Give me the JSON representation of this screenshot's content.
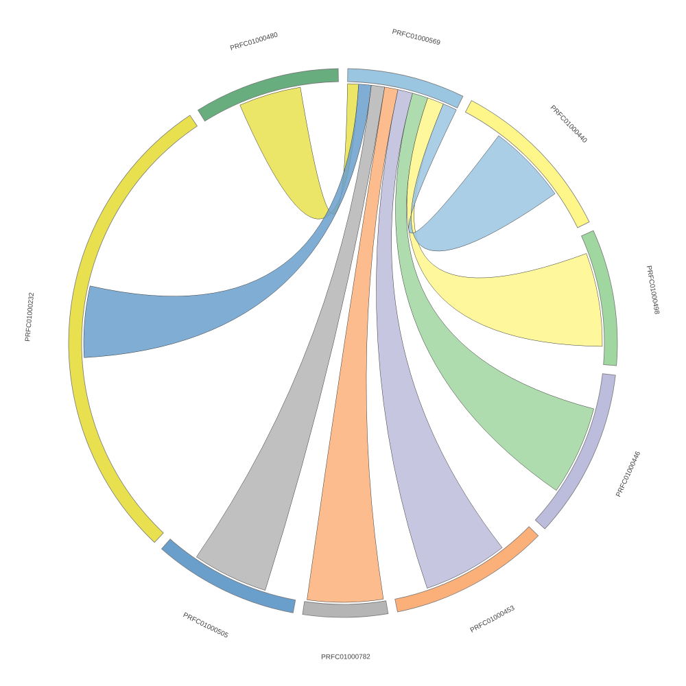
{
  "chart_data": {
    "type": "chord",
    "nodes": [
      {
        "name": "PRFC01000569",
        "value": 25,
        "color": "#9ac6e2"
      },
      {
        "name": "PRFC01000440",
        "value": 36,
        "color": "#fff68a"
      },
      {
        "name": "PRFC01000498",
        "value": 29,
        "color": "#a0d6a0"
      },
      {
        "name": "PRFC01000446",
        "value": 36,
        "color": "#bcbcdc"
      },
      {
        "name": "PRFC01000453",
        "value": 34,
        "color": "#fbb07a"
      },
      {
        "name": "PRFC01000782",
        "value": 18,
        "color": "#b5b5b5"
      },
      {
        "name": "PRFC01000505",
        "value": 31,
        "color": "#6a9fcc"
      },
      {
        "name": "PRFC01000232",
        "value": 103,
        "color": "#e8e04e"
      },
      {
        "name": "PRFC01000480",
        "value": 31,
        "color": "#68ad7e"
      }
    ],
    "links": [
      {
        "source": "PRFC01000480",
        "target": "PRFC01000569",
        "value": 14,
        "color": "#e8e04e"
      },
      {
        "source": "PRFC01000232",
        "target": "PRFC01000569",
        "value": 16,
        "color": "#6a9fcc"
      },
      {
        "source": "PRFC01000505",
        "target": "PRFC01000569",
        "value": 17,
        "color": "#b5b5b5"
      },
      {
        "source": "PRFC01000782",
        "target": "PRFC01000569",
        "value": 17,
        "color": "#fbb07a"
      },
      {
        "source": "PRFC01000453",
        "target": "PRFC01000569",
        "value": 19,
        "color": "#bcbcdc"
      },
      {
        "source": "PRFC01000446",
        "target": "PRFC01000569",
        "value": 20,
        "color": "#a0d6a0"
      },
      {
        "source": "PRFC01000498",
        "target": "PRFC01000569",
        "value": 21,
        "color": "#fff68a"
      },
      {
        "source": "PRFC01000440",
        "target": "PRFC01000569",
        "value": 18,
        "color": "#9ac6e2"
      }
    ]
  }
}
